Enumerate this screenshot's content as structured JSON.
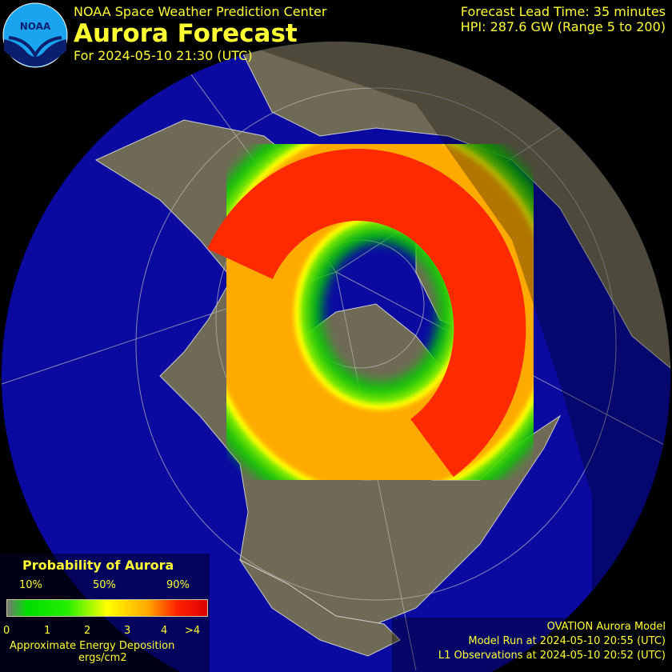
{
  "header": {
    "organization": "NOAA Space Weather Prediction Center",
    "title": "Aurora Forecast",
    "forecast_for": "For 2024-05-10 21:30 (UTC)",
    "lead_time": "Forecast Lead Time:  35 minutes",
    "hpi": "HPI: 287.6 GW (Range 5 to 200)"
  },
  "logo": {
    "text": "NOAA"
  },
  "legend": {
    "title": "Probability of Aurora",
    "percent_labels": [
      "10%",
      "50%",
      "90%"
    ],
    "energy_ticks": [
      "0",
      "1",
      "2",
      "3",
      "4",
      ">4"
    ],
    "energy_label": "Approximate Energy Deposition",
    "energy_units": "ergs/cm2"
  },
  "footer": {
    "model": "OVATION Aurora Model",
    "model_run": "Model Run at 2024-05-10 20:55 (UTC)",
    "l1_observations": "L1 Observations at 2024-05-10 20:52 (UTC)"
  },
  "colors": {
    "ocean": "#0a0aa0",
    "land": "#6f6a55",
    "text": "#ffff33",
    "aurora_high": "#ff2a00",
    "aurora_low": "#00cc00"
  }
}
